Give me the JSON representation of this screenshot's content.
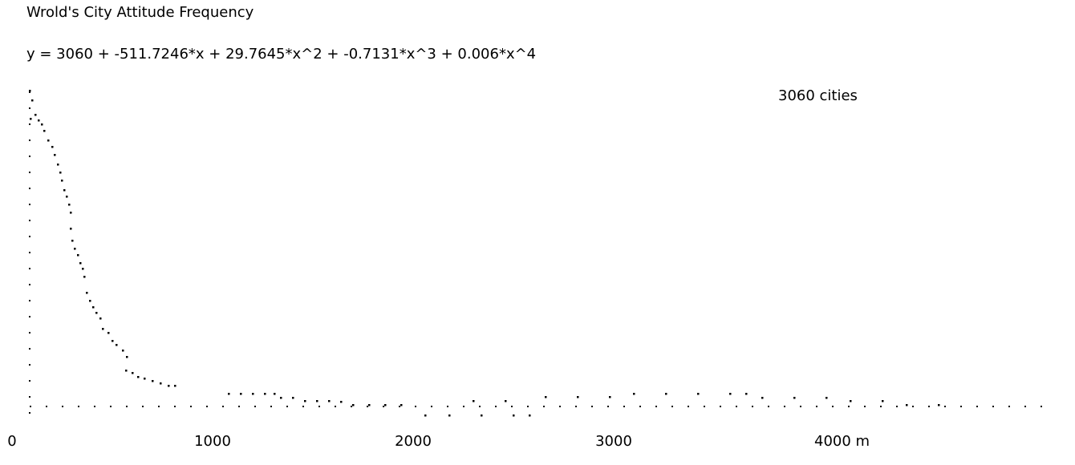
{
  "chart_data": {
    "type": "scatter",
    "title": "Wrold's City Attitude Frequency",
    "subtitle": "y = 3060 + -511.7246*x + 29.7645*x^2 + -0.7131*x^3 + 0.006*x^4",
    "annotation": "3060 cities",
    "color": "#000000",
    "x": [
      108,
      120,
      112,
      136,
      152,
      168,
      180,
      200,
      220,
      232,
      248,
      260,
      268,
      280,
      292,
      304,
      312,
      312,
      320,
      332,
      348,
      360,
      372,
      380,
      392,
      408,
      424,
      440,
      460,
      472,
      500,
      520,
      540,
      572,
      592,
      588,
      620,
      648,
      680,
      720,
      760,
      800,
      832,
      1100,
      1160,
      1220,
      1280,
      1328,
      1360,
      1420,
      1480,
      1540,
      1600,
      1660,
      1720,
      1800,
      1880,
      1960,
      2080,
      2200,
      2320,
      2360,
      2480,
      2520,
      2600,
      2680,
      2840,
      3000,
      3120,
      3280,
      3440,
      3600,
      3680,
      3760,
      3920,
      4080,
      4200,
      4360,
      4480,
      4640
    ],
    "values": [
      405,
      393,
      370,
      375,
      368,
      363,
      355,
      343,
      335,
      325,
      313,
      303,
      293,
      281,
      273,
      263,
      253,
      233,
      218,
      208,
      200,
      190,
      183,
      173,
      153,
      143,
      135,
      128,
      121,
      108,
      103,
      93,
      88,
      81,
      73,
      56,
      53,
      48,
      46,
      43,
      40,
      37,
      37,
      27,
      27,
      27,
      27,
      27,
      22,
      22,
      18,
      18,
      18,
      17,
      13,
      13,
      13,
      13,
      0,
      0,
      18,
      0,
      18,
      0,
      0,
      23,
      23,
      23,
      27,
      27,
      27,
      27,
      27,
      22,
      22,
      22,
      18,
      18,
      13,
      13
    ],
    "xlim": [
      0,
      5200
    ],
    "ylim": [
      0,
      420
    ],
    "xticks": [
      0,
      1000,
      2000,
      3000,
      {
        "value": 4000,
        "label": "4000 m"
      }
    ],
    "grid": false
  }
}
